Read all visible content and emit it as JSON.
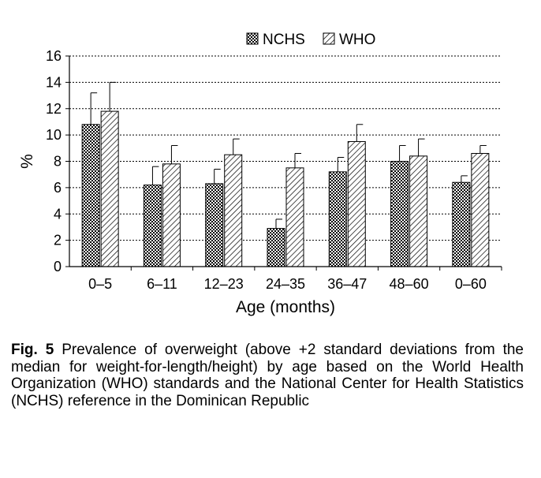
{
  "chart_data": {
    "type": "bar",
    "categories": [
      "0–5",
      "6–11",
      "12–23",
      "24–35",
      "36–47",
      "48–60",
      "0–60"
    ],
    "series": [
      {
        "name": "NCHS",
        "values": [
          10.8,
          6.2,
          6.3,
          2.9,
          7.2,
          8.0,
          6.4
        ],
        "errors": [
          2.4,
          1.4,
          1.1,
          0.7,
          1.1,
          1.2,
          0.5
        ]
      },
      {
        "name": "WHO",
        "values": [
          11.8,
          7.8,
          8.5,
          7.5,
          9.5,
          8.4,
          8.6
        ],
        "errors": [
          2.2,
          1.4,
          1.2,
          1.1,
          1.3,
          1.3,
          0.6
        ]
      }
    ],
    "xlabel": "Age (months)",
    "ylabel": "%",
    "ylim": [
      0,
      16
    ],
    "yticks": [
      "0",
      "2",
      "4",
      "6",
      "8",
      "10",
      "12",
      "14",
      "16"
    ],
    "grid": true,
    "legend_position": "top"
  },
  "caption": {
    "label": "Fig. 5",
    "text": "Prevalence of overweight (above +2 standard deviations from the median for weight-for-length/height) by age based on the World Health Organization (WHO) standards and the National Center for Health Statistics (NCHS) reference in the Dominican Republic"
  }
}
